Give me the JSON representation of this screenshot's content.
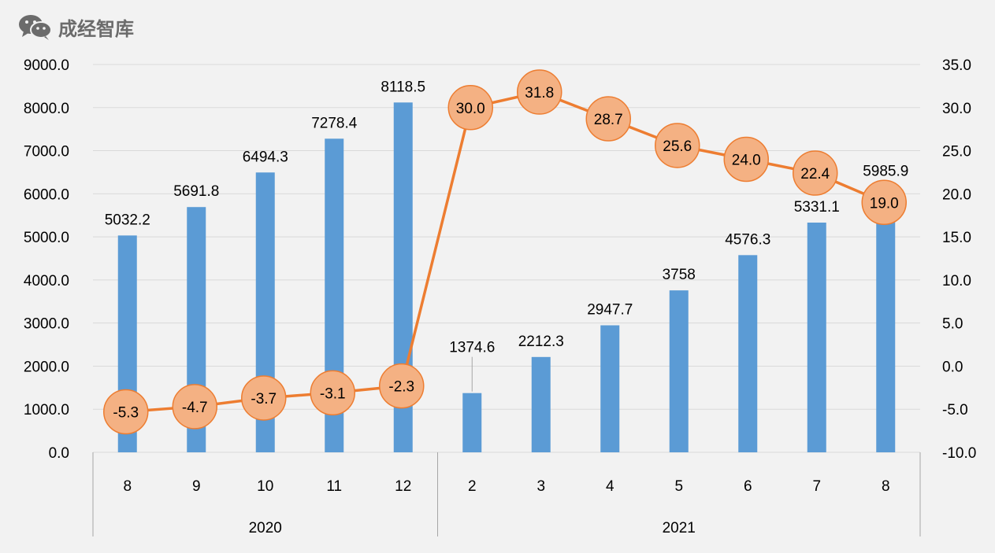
{
  "header": {
    "brand_name": "成经智库",
    "brand_icon": "wechat-icon"
  },
  "colors": {
    "bar": "#5b9bd5",
    "line": "#ed7d31",
    "marker_fill": "#f4b183",
    "marker_stroke": "#ed7d31",
    "grid": "#d9d9d9",
    "text": "#000000",
    "background": "#f2f2f2"
  },
  "chart_data": {
    "type": "bar",
    "categories": [
      "8",
      "9",
      "10",
      "11",
      "12",
      "2",
      "3",
      "4",
      "5",
      "6",
      "7",
      "8"
    ],
    "groups": [
      {
        "label": "2020",
        "count": 5
      },
      {
        "label": "2021",
        "count": 7
      }
    ],
    "series": [
      {
        "type": "bar",
        "axis": "left",
        "values": [
          5032.2,
          5691.8,
          6494.3,
          7278.4,
          8118.5,
          1374.6,
          2212.3,
          2947.7,
          3758,
          4576.3,
          5331.1,
          5985.9
        ],
        "labels": [
          "5032.2",
          "5691.8",
          "6494.3",
          "7278.4",
          "8118.5",
          "1374.6",
          "2212.3",
          "2947.7",
          "3758",
          "4576.3",
          "5331.1",
          "5985.9"
        ]
      },
      {
        "type": "line",
        "axis": "right",
        "values": [
          -5.3,
          -4.7,
          -3.7,
          -3.1,
          -2.3,
          30.0,
          31.8,
          28.7,
          25.6,
          24.0,
          22.4,
          19.0
        ],
        "labels": [
          "-5.3",
          "-4.7",
          "-3.7",
          "-3.1",
          "-2.3",
          "30.0",
          "31.8",
          "28.7",
          "25.6",
          "24.0",
          "22.4",
          "19.0"
        ]
      }
    ],
    "left_axis": {
      "min": 0,
      "max": 9000,
      "step": 1000,
      "ticks": [
        "0.0",
        "1000.0",
        "2000.0",
        "3000.0",
        "4000.0",
        "5000.0",
        "6000.0",
        "7000.0",
        "8000.0",
        "9000.0"
      ]
    },
    "right_axis": {
      "min": -10,
      "max": 35,
      "step": 5,
      "ticks": [
        "-10.0",
        "-5.0",
        "0.0",
        "5.0",
        "10.0",
        "15.0",
        "20.0",
        "25.0",
        "30.0",
        "35.0"
      ]
    },
    "grid": true,
    "legend": "none"
  }
}
